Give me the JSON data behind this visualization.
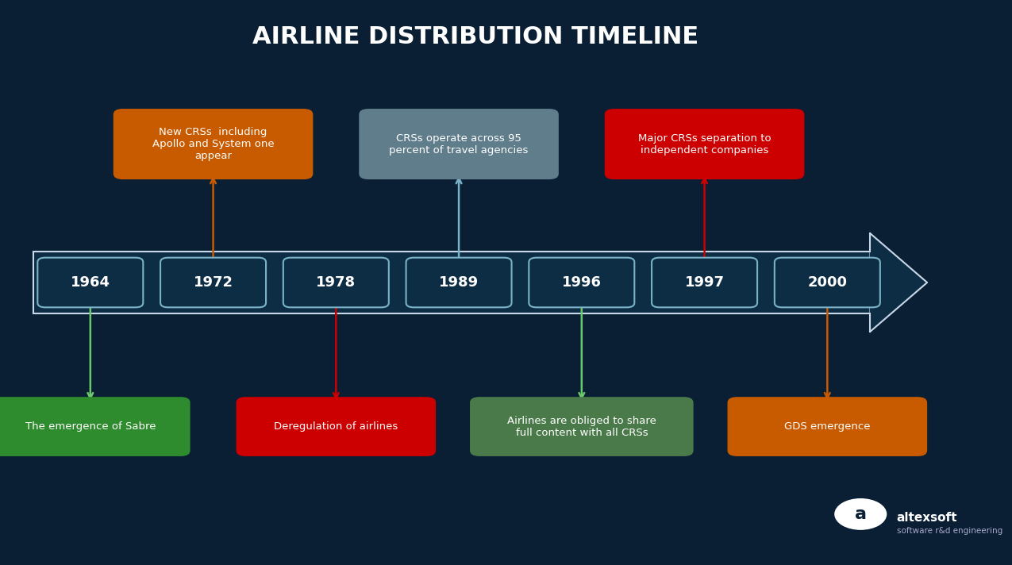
{
  "title": "AIRLINE DISTRIBUTION TIMELINE",
  "bg_color": "#0a1f33",
  "title_color": "#ffffff",
  "timeline_years": [
    "1964",
    "1972",
    "1978",
    "1989",
    "1996",
    "1997",
    "2000"
  ],
  "year_box_color": "#0d2d45",
  "year_box_edge": "#7ab3c8",
  "year_text_color": "#ffffff",
  "arrow_color": "#c8d8e8",
  "top_events": [
    {
      "year_idx": 1,
      "text": "New CRSs  including\nApollo and System one\nappear",
      "color": "#c85a00",
      "connector_color": "#c85a00",
      "text_color": "#ffffff"
    },
    {
      "year_idx": 3,
      "text": "CRSs operate across 95\npercent of travel agencies",
      "color": "#607d8b",
      "connector_color": "#7ab3c8",
      "text_color": "#ffffff"
    },
    {
      "year_idx": 5,
      "text": "Major CRSs separation to\nindependent companies",
      "color": "#cc0000",
      "connector_color": "#cc0000",
      "text_color": "#ffffff"
    }
  ],
  "bottom_events": [
    {
      "year_idx": 0,
      "text": "The emergence of Sabre",
      "color": "#2e8b2e",
      "connector_color": "#6bc96b",
      "text_color": "#ffffff"
    },
    {
      "year_idx": 2,
      "text": "Deregulation of airlines",
      "color": "#cc0000",
      "connector_color": "#cc0000",
      "text_color": "#ffffff"
    },
    {
      "year_idx": 4,
      "text": "Airlines are obliged to share\nfull content with all CRSs",
      "color": "#4a7a4a",
      "connector_color": "#6bc96b",
      "text_color": "#ffffff"
    },
    {
      "year_idx": 6,
      "text": "GDS emergence",
      "color": "#c85a00",
      "connector_color": "#c85a00",
      "text_color": "#ffffff"
    }
  ],
  "watermark_text": "altexsoft",
  "watermark_sub": "software r&d engineering"
}
